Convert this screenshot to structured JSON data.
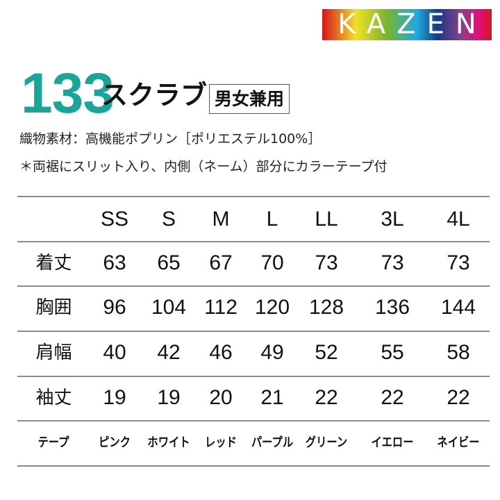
{
  "logo": {
    "text": "KAZEN",
    "colors": [
      "#d7141d",
      "#f0e12a",
      "#7ab52e",
      "#1fa9df",
      "#173a86",
      "#8a3f8c",
      "#e0117b"
    ]
  },
  "product": {
    "number": "133",
    "name": "スクラブ",
    "badge": "男女兼用",
    "number_color": "#1aa59a"
  },
  "description": {
    "line1": "織物素材：高機能ポプリン［ポリエステル100%］",
    "line2": "＊両裾にスリット入り、内側（ネーム）部分にカラーテープ付"
  },
  "table": {
    "sizes": [
      "SS",
      "S",
      "M",
      "L",
      "LL",
      "3L",
      "4L"
    ],
    "rows": [
      {
        "label": "着丈",
        "values": [
          "63",
          "65",
          "67",
          "70",
          "73",
          "73",
          "73"
        ]
      },
      {
        "label": "胸囲",
        "values": [
          "96",
          "104",
          "112",
          "120",
          "128",
          "136",
          "144"
        ]
      },
      {
        "label": "肩幅",
        "values": [
          "40",
          "42",
          "46",
          "49",
          "52",
          "55",
          "58"
        ]
      },
      {
        "label": "袖丈",
        "values": [
          "19",
          "19",
          "20",
          "21",
          "22",
          "22",
          "22"
        ]
      }
    ],
    "tape": {
      "label": "テープ",
      "values": [
        "ピンク",
        "ホワイト",
        "レッド",
        "パープル",
        "グリーン",
        "イエロー",
        "ネイビー"
      ]
    }
  }
}
